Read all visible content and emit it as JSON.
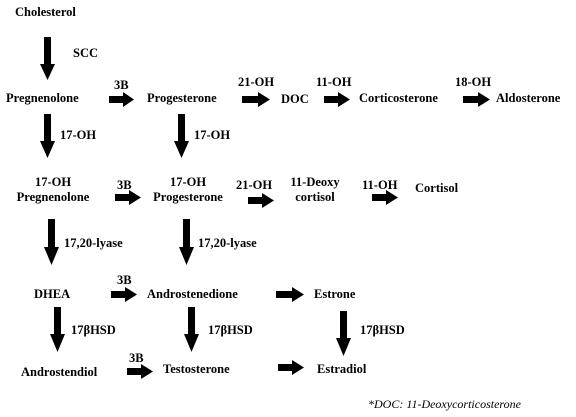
{
  "compounds": {
    "cholesterol": "Cholesterol",
    "pregnenolone": "Pregnenolone",
    "progesterone": "Progesterone",
    "doc": "DOC",
    "corticosterone": "Corticosterone",
    "aldosterone": "Aldosterone",
    "oh17_pregnenolone_line1": "17-OH",
    "oh17_pregnenolone_line2": "Pregnenolone",
    "oh17_progesterone_line1": "17-OH",
    "oh17_progesterone_line2": "Progesterone",
    "deoxycortisol_line1": "11-Deoxy",
    "deoxycortisol_line2": "cortisol",
    "cortisol": "Cortisol",
    "dhea": "DHEA",
    "androstenedione": "Androstenedione",
    "estrone": "Estrone",
    "androstendiol": "Androstendiol",
    "testosterone": "Testosterone",
    "estradiol": "Estradiol"
  },
  "enzymes": {
    "scc": "SCC",
    "b3_row1": "3B",
    "oh21_row1": "21-OH",
    "oh11_row1": "11-OH",
    "oh18": "18-OH",
    "oh17_left": "17-OH",
    "oh17_right": "17-OH",
    "b3_row2": "3B",
    "oh21_row2": "21-OH",
    "oh11_row2": "11-OH",
    "lyase_left": "17,20-lyase",
    "lyase_right": "17,20-lyase",
    "b3_row3": "3B",
    "hsd_left": "17βHSD",
    "hsd_mid": "17βHSD",
    "hsd_right": "17βHSD",
    "b3_row4": "3B"
  },
  "footnote": "*DOC: 11-Deoxycorticosterone"
}
